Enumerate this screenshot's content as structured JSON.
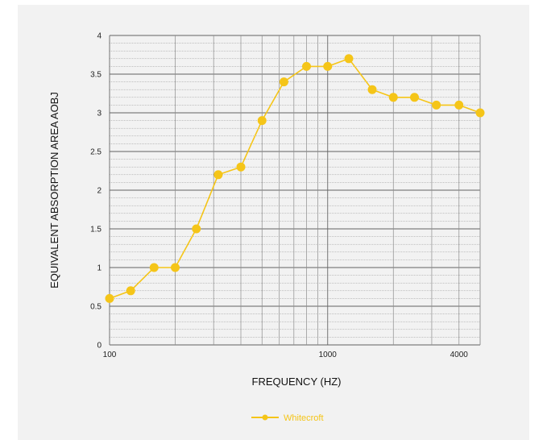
{
  "chart_data": {
    "type": "line",
    "xlabel": "FREQUENCY (HZ)",
    "ylabel": "EQUIVALENT ABSORPTION AREA AOBJ",
    "x_scale": "log",
    "xlim": [
      100,
      5000
    ],
    "ylim": [
      0,
      4
    ],
    "x_tick_labels": [
      "100",
      "1000",
      "4000"
    ],
    "y_tick_labels": [
      "0",
      "0.5",
      "1",
      "1.5",
      "2",
      "2.5",
      "3",
      "3.5",
      "4"
    ],
    "grid": true,
    "legend_position": "bottom-center",
    "x": [
      100,
      125,
      160,
      200,
      250,
      315,
      400,
      500,
      630,
      800,
      1000,
      1250,
      1600,
      2000,
      2500,
      3150,
      4000,
      5000
    ],
    "series": [
      {
        "name": "Whitecroft",
        "color": "#f5c518",
        "values": [
          0.6,
          0.7,
          1.0,
          1.0,
          1.5,
          2.2,
          2.3,
          2.9,
          3.4,
          3.6,
          3.6,
          3.7,
          3.3,
          3.2,
          3.2,
          3.1,
          3.1,
          3.0
        ]
      }
    ]
  }
}
